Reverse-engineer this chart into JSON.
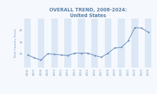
{
  "title_line1": "OVERALL TREND, 2006-2024:",
  "title_line2": "United States",
  "ylabel": "Total Country Score",
  "years": [
    2006,
    2007,
    2008,
    2009,
    2010,
    2011,
    2012,
    2013,
    2014,
    2015,
    2016,
    2017,
    2018,
    2019,
    2020,
    2021,
    2022,
    2023,
    2024
  ],
  "values": [
    24.0,
    21.5,
    19.5,
    25.0,
    24.5,
    24.0,
    23.5,
    25.5,
    25.5,
    25.5,
    23.5,
    22.0,
    25.5,
    30.0,
    30.5,
    36.0,
    47.5,
    47.0,
    43.5
  ],
  "line_color": "#6b8cba",
  "marker_color": "#6b8cba",
  "band_color": "#dce8f5",
  "bg_color": "#f5f8fd",
  "title_color": "#5b7fa6",
  "ylabel_color": "#7a9bbf",
  "tick_color": "#7a9bbf",
  "ylim": [
    13,
    55
  ],
  "yticks": [
    25,
    35,
    45
  ],
  "title_fontsize": 4.8,
  "label_fontsize": 3.2,
  "tick_fontsize": 3.0
}
